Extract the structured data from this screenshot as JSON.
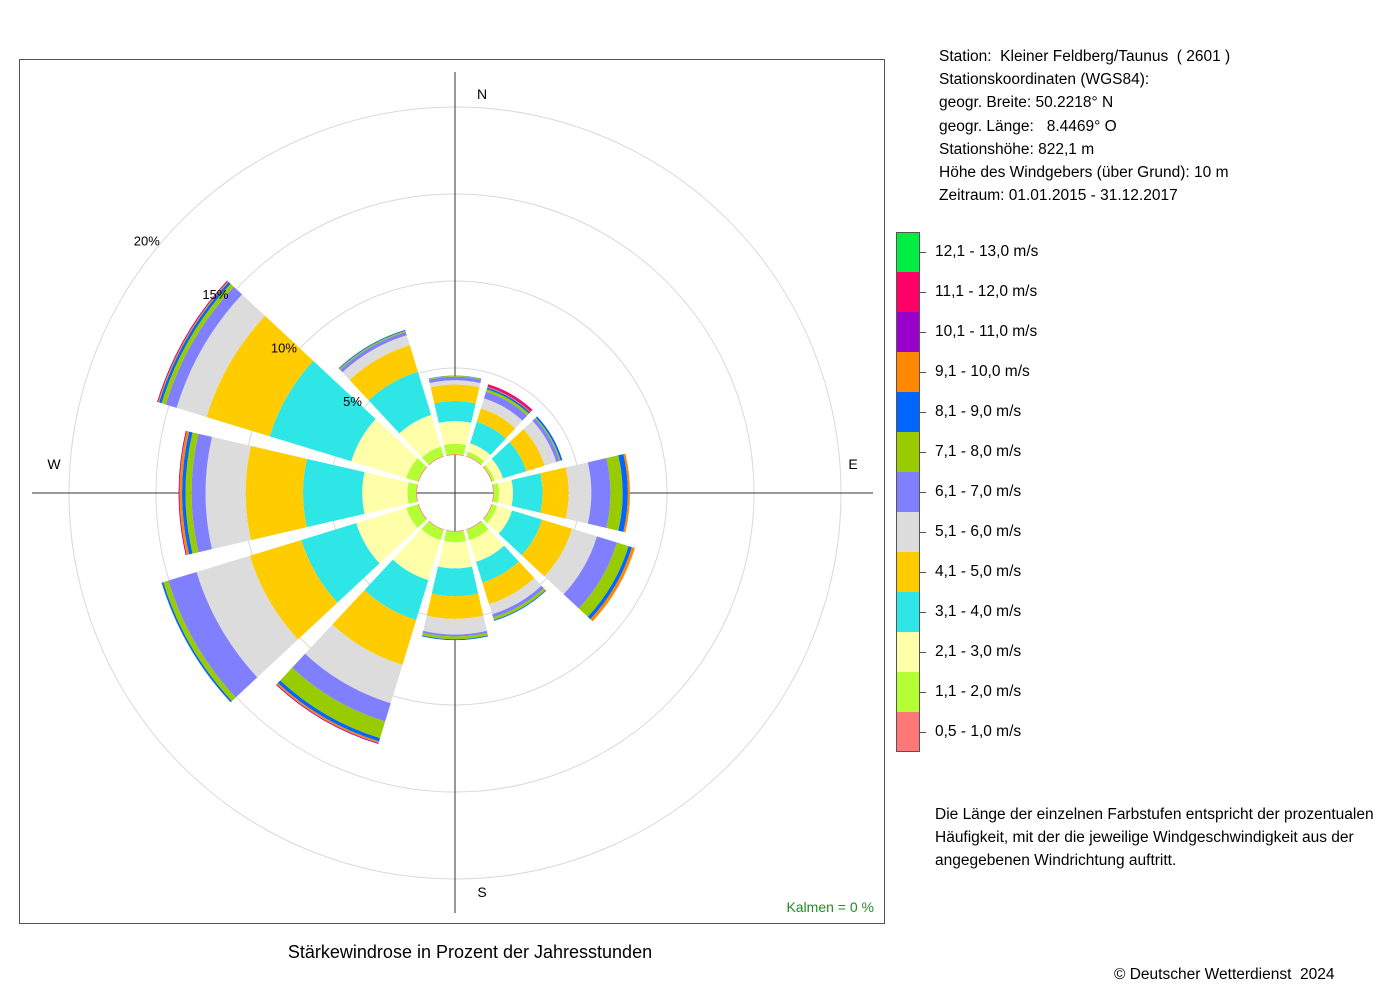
{
  "station_info": [
    "Station:  Kleiner Feldberg/Taunus  ( 2601 )",
    "Stationskoordinaten (WGS84):",
    "geogr. Breite: 50.2218° N",
    "geogr. Länge:   8.4469° O",
    "Stationshöhe: 822,1 m",
    "Höhe des Windgebers (über Grund): 10 m",
    "Zeitraum: 01.01.2015 - 31.12.2017"
  ],
  "legend": [
    {
      "label": "12,1 - 13,0 m/s",
      "color": "#00ee44"
    },
    {
      "label": "11,1 - 12,0 m/s",
      "color": "#ff0066"
    },
    {
      "label": "10,1 - 11,0 m/s",
      "color": "#9900cc"
    },
    {
      "label": "9,1 - 10,0 m/s",
      "color": "#ff8800"
    },
    {
      "label": "8,1 - 9,0 m/s",
      "color": "#0066ff"
    },
    {
      "label": "7,1 - 8,0 m/s",
      "color": "#99cc00"
    },
    {
      "label": "6,1 - 7,0 m/s",
      "color": "#8080ff"
    },
    {
      "label": "5,1 - 6,0 m/s",
      "color": "#dcdcdc"
    },
    {
      "label": "4,1 - 5,0 m/s",
      "color": "#ffcc00"
    },
    {
      "label": "3,1 - 4,0 m/s",
      "color": "#2ee6e6"
    },
    {
      "label": "2,1 - 3,0 m/s",
      "color": "#ffffaa"
    },
    {
      "label": "1,1 - 2,0 m/s",
      "color": "#b3ff33"
    },
    {
      "label": "0,5 - 1,0 m/s",
      "color": "#ff7777"
    }
  ],
  "note": "Die Länge der einzelnen Farbstufen entspricht der prozentualen Häufigkeit, mit der die jeweilige Windgeschwindigkeit aus der angegebenen Windrichtung auftritt.",
  "copyright": "© Deutscher Wetterdienst  2024",
  "calm_text": "Kalmen  =  0 %",
  "chart_data": {
    "type": "wind-rose",
    "title": "Stärkewindrose in Prozent der Jahresstunden",
    "unit": "%",
    "rings": [
      5,
      10,
      15,
      20
    ],
    "ring_labels": [
      "5%",
      "10%",
      "15%",
      "20%"
    ],
    "direction_labels": {
      "N": "N",
      "E": "E",
      "S": "S",
      "W": "W"
    },
    "calm_percent": 0,
    "speed_classes": [
      "0,5 - 1,0 m/s",
      "1,1 - 2,0 m/s",
      "2,1 - 3,0 m/s",
      "3,1 - 4,0 m/s",
      "4,1 - 5,0 m/s",
      "5,1 - 6,0 m/s",
      "6,1 - 7,0 m/s",
      "7,1 - 8,0 m/s",
      "8,1 - 9,0 m/s",
      "9,1 - 10,0 m/s",
      "10,1 - 11,0 m/s",
      "11,1 - 12,0 m/s",
      "12,1 - 13,0 m/s"
    ],
    "sectors": [
      {
        "direction_deg": 0,
        "values": [
          0.05,
          0.6,
          1.3,
          1.15,
          0.95,
          0.25,
          0.2,
          0.05,
          0.02,
          0,
          0,
          0,
          0
        ]
      },
      {
        "direction_deg": 30,
        "values": [
          0.05,
          0.25,
          0.5,
          1.3,
          0.8,
          0.6,
          0.4,
          0.15,
          0.1,
          0.05,
          0.05,
          0.1,
          0
        ]
      },
      {
        "direction_deg": 60,
        "values": [
          0.05,
          0.15,
          0.5,
          1.4,
          1.1,
          0.7,
          0.2,
          0.07,
          0.1,
          0,
          0,
          0,
          0
        ]
      },
      {
        "direction_deg": 90,
        "values": [
          0.05,
          0.3,
          0.8,
          1.7,
          1.5,
          1.3,
          1.1,
          0.7,
          0.3,
          0.12,
          0,
          0,
          0
        ]
      },
      {
        "direction_deg": 120,
        "values": [
          0.05,
          0.3,
          0.9,
          1.8,
          1.8,
          1.5,
          1.2,
          0.7,
          0.2,
          0.18,
          0,
          0,
          0
        ]
      },
      {
        "direction_deg": 150,
        "values": [
          0.05,
          0.6,
          1.3,
          1.25,
          1.3,
          0.6,
          0.2,
          0.15,
          0.05,
          0,
          0,
          0,
          0
        ]
      },
      {
        "direction_deg": 180,
        "values": [
          0.05,
          0.6,
          1.5,
          1.6,
          1.3,
          0.9,
          0.12,
          0.15,
          0.05,
          0,
          0,
          0,
          0
        ]
      },
      {
        "direction_deg": 210,
        "values": [
          0.05,
          0.6,
          2.4,
          2.4,
          2.7,
          2.3,
          1.1,
          1.0,
          0.2,
          0.1,
          0.05,
          0,
          0
        ]
      },
      {
        "direction_deg": 240,
        "values": [
          0.05,
          0.7,
          3.0,
          3.3,
          3.1,
          3.2,
          1.7,
          0.3,
          0.1,
          0,
          0,
          0,
          0
        ]
      },
      {
        "direction_deg": 270,
        "values": [
          0.05,
          0.5,
          2.6,
          3.4,
          3.3,
          2.3,
          0.8,
          0.35,
          0.2,
          0.15,
          0.05,
          0,
          0
        ]
      },
      {
        "direction_deg": 300,
        "values": [
          0.05,
          0.7,
          3.3,
          4.9,
          3.8,
          1.8,
          0.65,
          0.25,
          0.15,
          0.07,
          0.05,
          0,
          0
        ]
      },
      {
        "direction_deg": 330,
        "values": [
          0.05,
          0.55,
          1.9,
          2.6,
          1.6,
          0.6,
          0.2,
          0.07,
          0.05,
          0,
          0,
          0,
          0
        ]
      }
    ]
  }
}
